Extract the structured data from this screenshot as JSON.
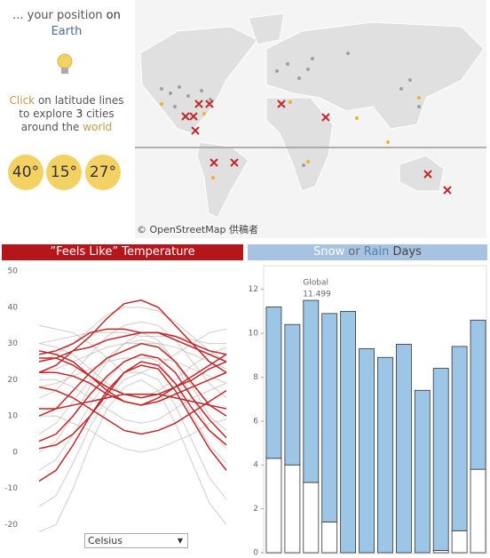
{
  "intro": {
    "line1": "... your position",
    "on": "on",
    "earth": "Earth"
  },
  "instruction": {
    "click": "Click",
    "rest1": "on latitude lines",
    "to": "to explore",
    "count": "3",
    "cities": "cities",
    "around": "around the",
    "world": "world"
  },
  "latitudes": [
    "40°",
    "15°",
    "27°"
  ],
  "map": {
    "credit": "© OpenStreetMap 供稿者"
  },
  "unit_selector": "Celsius",
  "chart_data": [
    {
      "type": "line",
      "title": "”Feels Like” Temperature",
      "ylim": [
        -28,
        52
      ],
      "yticks": [
        50,
        40,
        30,
        20,
        10,
        0,
        -10,
        -20
      ],
      "series": [
        {
          "color": "#bdb8b4",
          "values": [
            30,
            31,
            32,
            33,
            33,
            33,
            32,
            32,
            32,
            31,
            30,
            30
          ]
        },
        {
          "color": "#bdb8b4",
          "values": [
            25,
            27,
            30,
            34,
            38,
            40,
            40,
            39,
            36,
            32,
            28,
            25
          ]
        },
        {
          "color": "#bdb8b4",
          "values": [
            15,
            17,
            22,
            27,
            32,
            35,
            36,
            35,
            31,
            25,
            19,
            15
          ]
        },
        {
          "color": "#bdb8b4",
          "values": [
            5,
            8,
            14,
            20,
            26,
            30,
            31,
            30,
            25,
            18,
            10,
            6
          ]
        },
        {
          "color": "#bdb8b4",
          "values": [
            -5,
            -2,
            5,
            13,
            20,
            25,
            27,
            25,
            19,
            10,
            2,
            -3
          ]
        },
        {
          "color": "#bdb8b4",
          "values": [
            -15,
            -12,
            -3,
            7,
            15,
            20,
            22,
            20,
            13,
            3,
            -7,
            -13
          ]
        },
        {
          "color": "#bdb8b4",
          "values": [
            -22,
            -20,
            -10,
            2,
            12,
            18,
            20,
            17,
            8,
            -3,
            -14,
            -20
          ]
        },
        {
          "color": "#bdb8b4",
          "values": [
            30,
            29,
            27,
            23,
            19,
            16,
            15,
            17,
            20,
            24,
            27,
            29
          ]
        },
        {
          "color": "#bdb8b4",
          "values": [
            20,
            20,
            18,
            15,
            12,
            9,
            8,
            9,
            12,
            15,
            17,
            19
          ]
        },
        {
          "color": "#bdb8b4",
          "values": [
            10,
            10,
            8,
            6,
            3,
            1,
            0,
            1,
            3,
            5,
            8,
            9
          ]
        },
        {
          "color": "#bdb8b4",
          "values": [
            35,
            34,
            33,
            30,
            26,
            22,
            22,
            24,
            27,
            30,
            33,
            34
          ]
        },
        {
          "color": "#bdb8b4",
          "values": [
            22,
            23,
            25,
            27,
            29,
            30,
            30,
            30,
            29,
            27,
            25,
            23
          ]
        },
        {
          "color": "#bdb8b4",
          "values": [
            0,
            3,
            10,
            18,
            25,
            30,
            33,
            31,
            25,
            15,
            6,
            1
          ]
        },
        {
          "color": "#bdb8b4",
          "values": [
            18,
            19,
            21,
            23,
            25,
            26,
            26,
            26,
            25,
            23,
            21,
            19
          ]
        },
        {
          "color": "#c0282b",
          "values": [
            22,
            24,
            28,
            32,
            37,
            41,
            42,
            40,
            35,
            30,
            25,
            22
          ]
        },
        {
          "color": "#c0282b",
          "values": [
            27,
            28,
            30,
            33,
            34,
            34,
            33,
            33,
            32,
            30,
            28,
            27
          ]
        },
        {
          "color": "#c0282b",
          "values": [
            25,
            26,
            28,
            29,
            31,
            32,
            33,
            33,
            31,
            29,
            27,
            25
          ]
        },
        {
          "color": "#c0282b",
          "values": [
            10,
            12,
            17,
            22,
            26,
            28,
            30,
            29,
            25,
            19,
            13,
            10
          ]
        },
        {
          "color": "#c0282b",
          "values": [
            3,
            5,
            10,
            16,
            21,
            25,
            27,
            26,
            22,
            15,
            9,
            4
          ]
        },
        {
          "color": "#c0282b",
          "values": [
            -8,
            -5,
            2,
            10,
            17,
            22,
            24,
            23,
            17,
            9,
            1,
            -5
          ]
        },
        {
          "color": "#c0282b",
          "values": [
            28,
            27,
            25,
            21,
            17,
            14,
            13,
            15,
            18,
            21,
            24,
            27
          ]
        },
        {
          "color": "#c0282b",
          "values": [
            26,
            26,
            24,
            21,
            18,
            16,
            15,
            16,
            18,
            20,
            23,
            25
          ]
        },
        {
          "color": "#c0282b",
          "values": [
            18,
            17,
            15,
            12,
            9,
            6,
            5,
            6,
            8,
            11,
            14,
            17
          ]
        },
        {
          "color": "#c0282b",
          "values": [
            22,
            22,
            21,
            19,
            16,
            14,
            13,
            14,
            16,
            18,
            20,
            22
          ]
        },
        {
          "color": "#c0282b",
          "values": [
            12,
            12,
            13,
            14,
            15,
            16,
            16,
            16,
            15,
            14,
            13,
            12
          ]
        },
        {
          "color": "#c0282b",
          "values": [
            1,
            2,
            5,
            10,
            16,
            22,
            25,
            24,
            19,
            12,
            6,
            2
          ]
        }
      ]
    },
    {
      "type": "stacked_bar",
      "title": [
        "Snow",
        "or",
        "Rain",
        "Days"
      ],
      "ylim": [
        0,
        13
      ],
      "yticks": [
        0,
        2,
        4,
        6,
        8,
        10,
        12
      ],
      "annotation": {
        "label": "Global",
        "value": 11.499
      },
      "series": [
        {
          "color": "#ffffff",
          "values": [
            4.3,
            4.0,
            3.2,
            1.4,
            0,
            0,
            0,
            0,
            0,
            0.1,
            1.0,
            3.8
          ]
        },
        {
          "color": "#9dc6e6",
          "values": [
            6.9,
            6.4,
            8.3,
            9.5,
            11.0,
            9.3,
            8.9,
            9.5,
            7.4,
            8.3,
            8.4,
            6.8
          ]
        }
      ]
    }
  ]
}
